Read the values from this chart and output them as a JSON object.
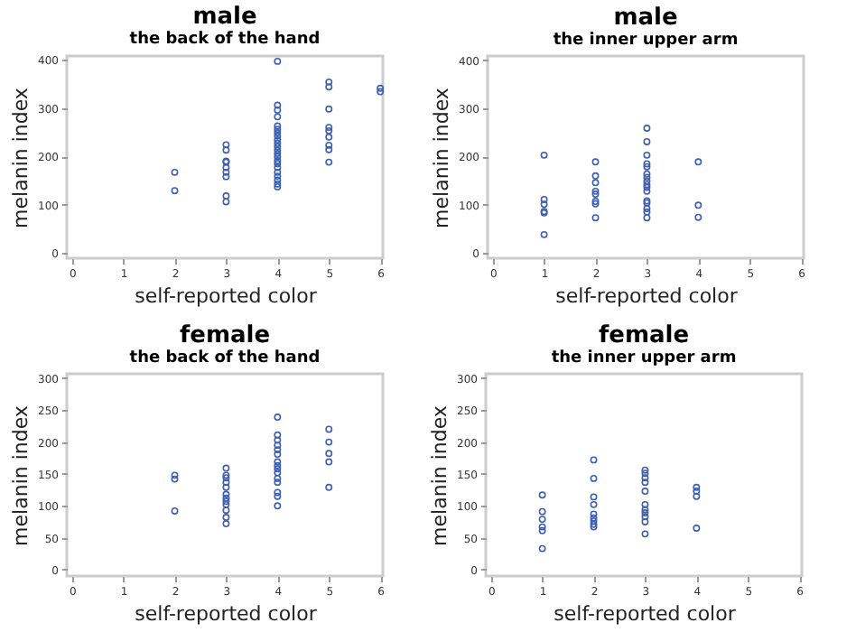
{
  "chart_data": [
    {
      "type": "scatter",
      "title": "male",
      "subtitle": "the back of the hand",
      "xlabel": "self-reported color",
      "ylabel": "melanin index",
      "xlim": [
        -0.1,
        6.05
      ],
      "ylim": [
        -11,
        408
      ],
      "xticks": [
        0,
        1,
        2,
        3,
        4,
        5,
        6
      ],
      "yticks": [
        0,
        100,
        200,
        300,
        400
      ],
      "grid": false,
      "marker": "circle",
      "series": [
        {
          "color": "#3d5fb0",
          "x": [
            2,
            2,
            3,
            3,
            3,
            3,
            3,
            3,
            3,
            3,
            3,
            4,
            4,
            4,
            4,
            4,
            4,
            4,
            4,
            4,
            4,
            4,
            4,
            4,
            4,
            4,
            4,
            4,
            4,
            4,
            4,
            4,
            4,
            5,
            5,
            5,
            5,
            5,
            5,
            5,
            5,
            5,
            6,
            6
          ],
          "values": [
            167,
            129,
            224,
            213,
            190,
            188,
            177,
            167,
            158,
            118,
            106,
            397,
            306,
            296,
            282,
            263,
            256,
            249,
            242,
            234,
            227,
            220,
            213,
            206,
            199,
            191,
            185,
            177,
            167,
            159,
            151,
            143,
            137,
            354,
            344,
            298,
            260,
            253,
            240,
            223,
            214,
            188,
            341,
            334
          ]
        }
      ]
    },
    {
      "type": "scatter",
      "title": "male",
      "subtitle": "the inner upper arm",
      "xlabel": "self-reported color",
      "ylabel": "melanin index",
      "xlim": [
        -0.1,
        6.05
      ],
      "ylim": [
        -11,
        409
      ],
      "xticks": [
        0,
        1,
        2,
        3,
        4,
        5,
        6
      ],
      "yticks": [
        0,
        100,
        200,
        300,
        400
      ],
      "grid": false,
      "marker": "circle",
      "series": [
        {
          "color": "#3d5fb0",
          "x": [
            1,
            1,
            1,
            1,
            1,
            1,
            2,
            2,
            2,
            2,
            2,
            2,
            2,
            2,
            3,
            3,
            3,
            3,
            3,
            3,
            3,
            3,
            3,
            3,
            3,
            3,
            3,
            3,
            3,
            3,
            4,
            4,
            4
          ],
          "values": [
            203,
            111,
            101,
            86,
            83,
            38,
            189,
            160,
            146,
            128,
            122,
            107,
            102,
            73,
            259,
            231,
            203,
            185,
            179,
            164,
            157,
            149,
            142,
            136,
            128,
            108,
            104,
            92,
            85,
            73,
            189,
            99,
            74
          ]
        }
      ]
    },
    {
      "type": "scatter",
      "title": "female",
      "subtitle": "the back of the hand",
      "xlabel": "self-reported color",
      "ylabel": "melanin index",
      "xlim": [
        -0.1,
        6.05
      ],
      "ylim": [
        -10,
        307
      ],
      "xticks": [
        0,
        1,
        2,
        3,
        4,
        5,
        6
      ],
      "yticks": [
        0,
        50,
        100,
        150,
        200,
        250,
        300
      ],
      "grid": false,
      "marker": "circle",
      "series": [
        {
          "color": "#3d5fb0",
          "x": [
            2,
            2,
            2,
            3,
            3,
            3,
            3,
            3,
            3,
            3,
            3,
            3,
            3,
            3,
            3,
            4,
            4,
            4,
            4,
            4,
            4,
            4,
            4,
            4,
            4,
            4,
            4,
            4,
            4,
            4,
            5,
            5,
            5,
            5,
            5
          ],
          "values": [
            148,
            142,
            92,
            159,
            148,
            144,
            137,
            129,
            118,
            112,
            107,
            102,
            93,
            82,
            72,
            239,
            211,
            203,
            195,
            188,
            181,
            169,
            163,
            158,
            152,
            143,
            137,
            121,
            115,
            100,
            220,
            200,
            182,
            169,
            129
          ]
        }
      ]
    },
    {
      "type": "scatter",
      "title": "female",
      "subtitle": "the inner upper arm",
      "xlabel": "self-reported color",
      "ylabel": "melanin index",
      "xlim": [
        -0.1,
        6.05
      ],
      "ylim": [
        -10,
        307
      ],
      "xticks": [
        0,
        1,
        2,
        3,
        4,
        5,
        6
      ],
      "yticks": [
        0,
        50,
        100,
        150,
        200,
        250,
        300
      ],
      "grid": false,
      "marker": "circle",
      "series": [
        {
          "color": "#3d5fb0",
          "x": [
            1,
            1,
            1,
            1,
            1,
            1,
            2,
            2,
            2,
            2,
            2,
            2,
            2,
            2,
            2,
            3,
            3,
            3,
            3,
            3,
            3,
            3,
            3,
            3,
            3,
            3,
            4,
            4,
            4,
            4
          ],
          "values": [
            117,
            91,
            79,
            67,
            61,
            33,
            172,
            143,
            114,
            102,
            87,
            81,
            76,
            71,
            67,
            156,
            151,
            144,
            137,
            123,
            102,
            94,
            89,
            83,
            75,
            56,
            129,
            123,
            115,
            65
          ]
        }
      ]
    }
  ]
}
